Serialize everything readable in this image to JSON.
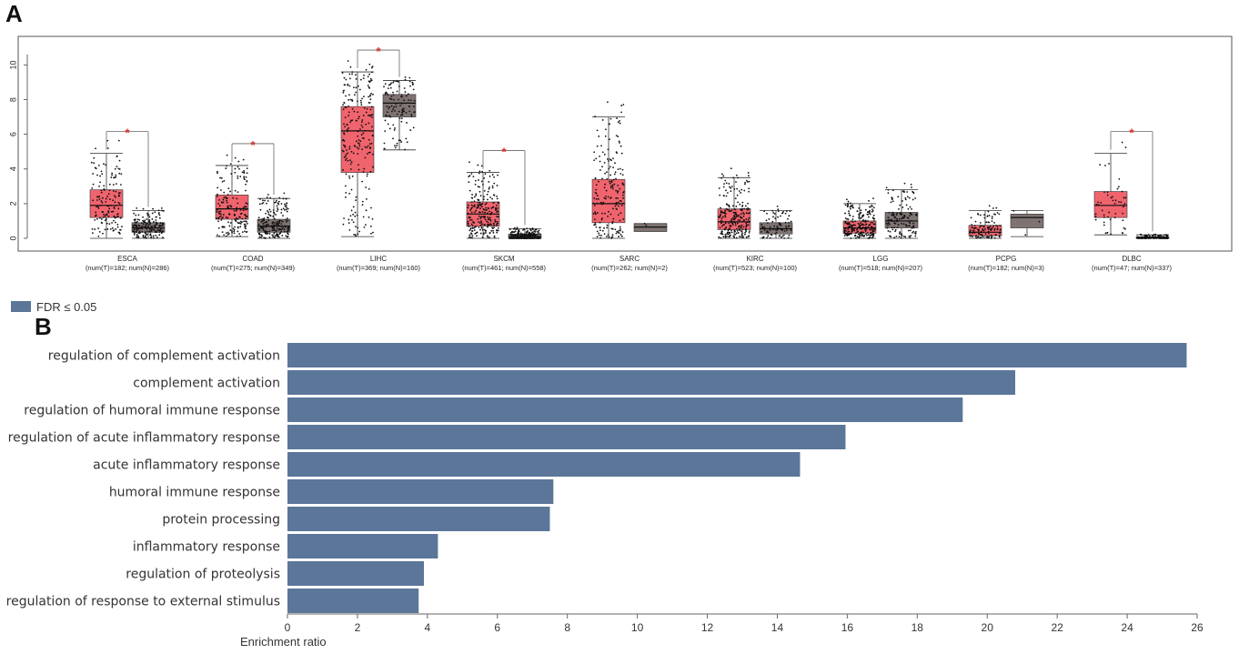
{
  "panel_a_label": "A",
  "panel_b_label": "B",
  "chart_data": [
    {
      "type": "box",
      "panel": "A",
      "ylim": [
        0,
        10.6
      ],
      "y_ticks": [
        0,
        2,
        4,
        6,
        8,
        10
      ],
      "significance_marker": "*",
      "colors": {
        "tumor": "#f0646e",
        "normal": "#7f7372"
      },
      "groups": [
        {
          "name": "ESCA",
          "sub": "(num(T)=182; num(N)=286)",
          "significant": true,
          "tumor": {
            "min": 0.0,
            "q1": 1.2,
            "median": 1.9,
            "q3": 2.8,
            "max": 4.9,
            "n_pts": 150
          },
          "normal": {
            "min": 0.0,
            "q1": 0.35,
            "median": 0.6,
            "q3": 0.9,
            "max": 1.6,
            "n_pts": 170
          }
        },
        {
          "name": "COAD",
          "sub": "(num(T)=275; num(N)=349)",
          "significant": true,
          "tumor": {
            "min": 0.1,
            "q1": 1.1,
            "median": 1.7,
            "q3": 2.5,
            "max": 4.2,
            "n_pts": 180
          },
          "normal": {
            "min": 0.0,
            "q1": 0.35,
            "median": 0.7,
            "q3": 1.1,
            "max": 2.3,
            "n_pts": 200
          }
        },
        {
          "name": "LIHC",
          "sub": "(num(T)=369; num(N)=160)",
          "significant": true,
          "tumor": {
            "min": 0.1,
            "q1": 3.8,
            "median": 6.2,
            "q3": 7.6,
            "max": 9.6,
            "n_pts": 230
          },
          "normal": {
            "min": 5.1,
            "q1": 7.0,
            "median": 7.8,
            "q3": 8.3,
            "max": 9.1,
            "n_pts": 110
          }
        },
        {
          "name": "SKCM",
          "sub": "(num(T)=461; num(N)=558)",
          "significant": true,
          "tumor": {
            "min": 0.0,
            "q1": 0.7,
            "median": 1.4,
            "q3": 2.1,
            "max": 3.8,
            "n_pts": 240
          },
          "normal": {
            "min": 0.0,
            "q1": 0.0,
            "median": 0.1,
            "q3": 0.25,
            "max": 0.55,
            "n_pts": 200
          }
        },
        {
          "name": "SARC",
          "sub": "(num(T)=262; num(N)=2)",
          "significant": false,
          "tumor": {
            "min": 0.0,
            "q1": 0.9,
            "median": 2.0,
            "q3": 3.4,
            "max": 7.0,
            "n_pts": 190
          },
          "normal": {
            "min": 0.4,
            "q1": 0.4,
            "median": 0.65,
            "q3": 0.85,
            "max": 0.85,
            "n_pts": 2
          }
        },
        {
          "name": "KIRC",
          "sub": "(num(T)=523; num(N)=100)",
          "significant": false,
          "tumor": {
            "min": 0.0,
            "q1": 0.5,
            "median": 0.95,
            "q3": 1.7,
            "max": 3.5,
            "n_pts": 240
          },
          "normal": {
            "min": 0.0,
            "q1": 0.25,
            "median": 0.55,
            "q3": 0.9,
            "max": 1.6,
            "n_pts": 80
          }
        },
        {
          "name": "LGG",
          "sub": "(num(T)=518; num(N)=207)",
          "significant": false,
          "tumor": {
            "min": 0.0,
            "q1": 0.3,
            "median": 0.6,
            "q3": 1.0,
            "max": 2.0,
            "n_pts": 240
          },
          "normal": {
            "min": 0.0,
            "q1": 0.6,
            "median": 1.0,
            "q3": 1.5,
            "max": 2.8,
            "n_pts": 140
          }
        },
        {
          "name": "PCPG",
          "sub": "(num(T)=182; num(N)=3)",
          "significant": false,
          "tumor": {
            "min": 0.0,
            "q1": 0.15,
            "median": 0.35,
            "q3": 0.75,
            "max": 1.6,
            "n_pts": 110
          },
          "normal": {
            "min": 0.1,
            "q1": 0.6,
            "median": 1.2,
            "q3": 1.4,
            "max": 1.6,
            "n_pts": 3
          }
        },
        {
          "name": "DLBC",
          "sub": "(num(T)=47; num(N)=337)",
          "significant": true,
          "tumor": {
            "min": 0.2,
            "q1": 1.2,
            "median": 1.9,
            "q3": 2.7,
            "max": 4.9,
            "n_pts": 50
          },
          "normal": {
            "min": 0.0,
            "q1": 0.0,
            "median": 0.02,
            "q3": 0.08,
            "max": 0.2,
            "n_pts": 150
          }
        }
      ]
    },
    {
      "type": "bar",
      "panel": "B",
      "orientation": "horizontal",
      "legend": "FDR ≤ 0.05",
      "bar_color": "#5b7699",
      "categories": [
        "regulation of complement activation",
        "complement activation",
        "regulation of humoral immune response",
        "regulation of acute inflammatory response",
        "acute inflammatory response",
        "humoral immune response",
        "protein processing",
        "inflammatory response",
        "regulation of proteolysis",
        "regulation of response to external stimulus"
      ],
      "values": [
        25.7,
        20.8,
        19.3,
        15.95,
        14.65,
        7.6,
        7.5,
        4.3,
        3.9,
        3.75
      ],
      "xlabel": "Enrichment ratio",
      "xlim": [
        0,
        26
      ],
      "x_ticks": [
        0,
        2,
        4,
        6,
        8,
        10,
        12,
        14,
        16,
        18,
        20,
        22,
        24,
        26
      ]
    }
  ]
}
